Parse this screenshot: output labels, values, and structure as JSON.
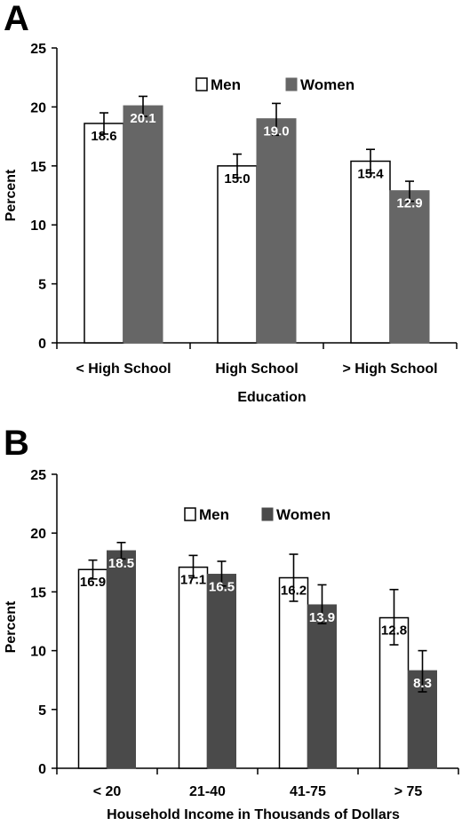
{
  "chart_data": [
    {
      "type": "bar",
      "panel": "A",
      "xlabel": "Education",
      "ylabel": "Percent",
      "ylim": [
        0,
        25
      ],
      "yticks": [
        0,
        5,
        10,
        15,
        20,
        25
      ],
      "categories": [
        "< High School",
        "High School",
        "> High School"
      ],
      "series": [
        {
          "name": "Men",
          "values": [
            18.6,
            15.0,
            15.4
          ],
          "labels": [
            "18.6",
            "15.0",
            "15.4"
          ],
          "err_low": [
            17.7,
            14.0,
            14.4
          ],
          "err_high": [
            19.5,
            16.0,
            16.4
          ],
          "color": "#ffffff"
        },
        {
          "name": "Women",
          "values": [
            20.1,
            19.0,
            12.9
          ],
          "labels": [
            "20.1",
            "19.0",
            "12.9"
          ],
          "err_low": [
            19.2,
            17.6,
            12.0
          ],
          "err_high": [
            20.9,
            20.3,
            13.7
          ],
          "color": "#666666"
        }
      ],
      "legend": "top-right",
      "grid": false
    },
    {
      "type": "bar",
      "panel": "B",
      "xlabel": "Household Income in Thousands of Dollars",
      "ylabel": "Percent",
      "ylim": [
        0,
        25
      ],
      "yticks": [
        0,
        5,
        10,
        15,
        20,
        25
      ],
      "categories": [
        "< 20",
        "21-40",
        "41-75",
        "> 75"
      ],
      "series": [
        {
          "name": "Men",
          "values": [
            16.9,
            17.1,
            16.2,
            12.8
          ],
          "labels": [
            "16.9",
            "17.1",
            "16.2",
            "12.8"
          ],
          "err_low": [
            16.1,
            16.2,
            14.2,
            10.5
          ],
          "err_high": [
            17.7,
            18.1,
            18.2,
            15.2
          ],
          "color": "#ffffff"
        },
        {
          "name": "Women",
          "values": [
            18.5,
            16.5,
            13.9,
            8.3
          ],
          "labels": [
            "18.5",
            "16.5",
            "13.9",
            "8.3"
          ],
          "err_low": [
            17.8,
            15.5,
            12.3,
            6.5
          ],
          "err_high": [
            19.2,
            17.6,
            15.6,
            10.0
          ],
          "color": "#4a4a4a"
        }
      ],
      "legend": "top-right",
      "grid": false
    }
  ]
}
